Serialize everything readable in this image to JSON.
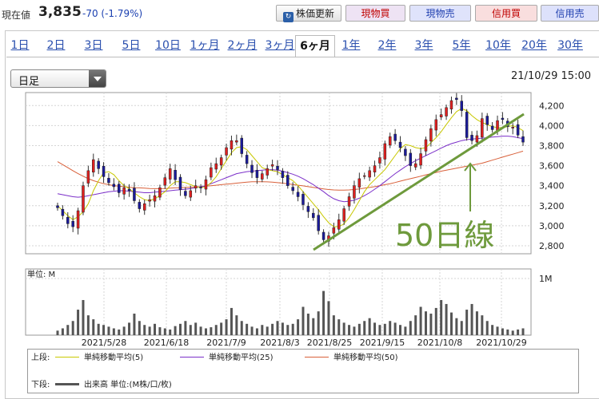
{
  "header": {
    "price_label": "現在値",
    "price_value": "3,835",
    "price_change": "-70 (-1.79%)",
    "buttons": {
      "update": "株価更新",
      "buy": "現物買",
      "sell": "現物売",
      "margin_buy": "信用買",
      "margin_sell": "信用売"
    }
  },
  "tabs": [
    "1日",
    "2日",
    "3日",
    "5日",
    "10日",
    "1ヶ月",
    "2ヶ月",
    "3ヶ月",
    "6ヶ月",
    "1年",
    "2年",
    "3年",
    "5年",
    "10年",
    "20年",
    "30年"
  ],
  "active_tab": "6ヶ月",
  "period_select": "日足",
  "datetime": "21/10/29 15:00",
  "chart": {
    "price_ticks": [
      "4,200",
      "4,000",
      "3,800",
      "3,600",
      "3,400",
      "3,200",
      "3,000",
      "2,800"
    ],
    "date_labels": [
      "2021/5/28",
      "2021/6/18",
      "2021/7/9",
      "2021/8/3",
      "2021/8/25",
      "2021/9/15",
      "2021/10/8",
      "2021/10/29"
    ],
    "volume_unit": "単位: M",
    "volume_tick": "1M",
    "annotation": "50日線",
    "colors": {
      "up": "#e02020",
      "down": "#1a1a9a",
      "ma5": "#c8c800",
      "ma25": "#7b2fc9",
      "ma50": "#d9603a",
      "annotation": "#6e9a3c",
      "volume": "#555555"
    }
  },
  "legend": {
    "upper_label": "上段:",
    "ma5": "単純移動平均(5)",
    "ma25": "単純移動平均(25)",
    "ma50": "単純移動平均(50)",
    "lower_label": "下段:",
    "volume": "出来高 単位:(M株/口/枚)"
  },
  "chart_data": {
    "type": "candlestick",
    "y_range": [
      2720,
      4330
    ],
    "close": [
      3180,
      3100,
      3020,
      2990,
      3150,
      3400,
      3550,
      3660,
      3570,
      3490,
      3430,
      3390,
      3330,
      3380,
      3350,
      3250,
      3170,
      3220,
      3260,
      3300,
      3380,
      3480,
      3570,
      3460,
      3360,
      3300,
      3350,
      3400,
      3380,
      3460,
      3580,
      3620,
      3680,
      3780,
      3850,
      3850,
      3720,
      3620,
      3530,
      3480,
      3520,
      3570,
      3610,
      3560,
      3480,
      3400,
      3350,
      3290,
      3210,
      3140,
      3080,
      2950,
      2860,
      2900,
      2980,
      3060,
      3170,
      3290,
      3400,
      3470,
      3500,
      3550,
      3600,
      3680,
      3820,
      3890,
      3850,
      3780,
      3700,
      3600,
      3620,
      3720,
      3860,
      3970,
      4060,
      4110,
      4180,
      4250,
      4260,
      4150,
      3880,
      3850,
      3900,
      4070,
      4010,
      3960,
      4050,
      4060,
      3990,
      3985,
      3905,
      3835
    ],
    "ma5": [
      3200,
      3150,
      3100,
      3060,
      3090,
      3140,
      3220,
      3350,
      3450,
      3530,
      3540,
      3510,
      3450,
      3400,
      3370,
      3330,
      3290,
      3260,
      3250,
      3270,
      3300,
      3340,
      3400,
      3440,
      3440,
      3430,
      3410,
      3390,
      3380,
      3390,
      3430,
      3490,
      3570,
      3650,
      3730,
      3780,
      3790,
      3760,
      3700,
      3640,
      3580,
      3560,
      3550,
      3540,
      3510,
      3480,
      3450,
      3400,
      3340,
      3280,
      3220,
      3160,
      3090,
      3030,
      2990,
      2990,
      3020,
      3080,
      3160,
      3250,
      3340,
      3410,
      3460,
      3510,
      3560,
      3630,
      3700,
      3770,
      3810,
      3800,
      3780,
      3770,
      3780,
      3830,
      3880,
      3940,
      4010,
      4080,
      4140,
      4170,
      4150,
      4100,
      4060,
      4030,
      4010,
      3990,
      3980,
      3980,
      3990,
      4000,
      3980,
      3950
    ],
    "ma25": [
      3320,
      3310,
      3300,
      3290,
      3285,
      3290,
      3300,
      3310,
      3320,
      3330,
      3340,
      3345,
      3350,
      3350,
      3345,
      3340,
      3335,
      3330,
      3330,
      3335,
      3340,
      3345,
      3350,
      3355,
      3360,
      3365,
      3370,
      3380,
      3390,
      3400,
      3420,
      3440,
      3460,
      3480,
      3500,
      3520,
      3530,
      3540,
      3545,
      3550,
      3555,
      3560,
      3560,
      3555,
      3545,
      3530,
      3515,
      3495,
      3470,
      3440,
      3410,
      3375,
      3340,
      3300,
      3270,
      3250,
      3240,
      3245,
      3255,
      3275,
      3300,
      3330,
      3365,
      3400,
      3440,
      3480,
      3520,
      3555,
      3590,
      3620,
      3650,
      3675,
      3700,
      3725,
      3750,
      3775,
      3800,
      3820,
      3835,
      3850,
      3860,
      3865,
      3870,
      3875,
      3880,
      3885,
      3890,
      3895,
      3895,
      3890,
      3880,
      3870
    ],
    "ma50": [
      3640,
      3610,
      3580,
      3550,
      3520,
      3495,
      3470,
      3450,
      3435,
      3420,
      3410,
      3400,
      3395,
      3390,
      3385,
      3380,
      3378,
      3375,
      3372,
      3370,
      3370,
      3372,
      3375,
      3378,
      3380,
      3382,
      3385,
      3388,
      3390,
      3395,
      3400,
      3405,
      3410,
      3415,
      3420,
      3425,
      3430,
      3435,
      3440,
      3440,
      3440,
      3438,
      3435,
      3430,
      3425,
      3420,
      3412,
      3405,
      3398,
      3390,
      3382,
      3375,
      3368,
      3362,
      3358,
      3355,
      3355,
      3358,
      3362,
      3368,
      3375,
      3382,
      3390,
      3400,
      3410,
      3420,
      3432,
      3445,
      3458,
      3470,
      3482,
      3495,
      3508,
      3520,
      3532,
      3545,
      3555,
      3565,
      3575,
      3585,
      3595,
      3605,
      3615,
      3625,
      3640,
      3655,
      3670,
      3685,
      3700,
      3715,
      3730,
      3745
    ],
    "volume": [
      0.08,
      0.12,
      0.18,
      0.25,
      0.45,
      0.62,
      0.35,
      0.28,
      0.2,
      0.18,
      0.15,
      0.12,
      0.1,
      0.15,
      0.22,
      0.38,
      0.25,
      0.18,
      0.15,
      0.2,
      0.14,
      0.12,
      0.1,
      0.16,
      0.2,
      0.25,
      0.18,
      0.22,
      0.15,
      0.12,
      0.14,
      0.18,
      0.22,
      0.28,
      0.48,
      0.35,
      0.25,
      0.2,
      0.15,
      0.12,
      0.18,
      0.15,
      0.2,
      0.25,
      0.22,
      0.18,
      0.2,
      0.28,
      0.5,
      0.38,
      0.3,
      0.42,
      0.78,
      0.6,
      0.35,
      0.28,
      0.22,
      0.18,
      0.15,
      0.2,
      0.25,
      0.3,
      0.22,
      0.18,
      0.2,
      0.25,
      0.22,
      0.18,
      0.15,
      0.25,
      0.35,
      0.5,
      0.42,
      0.38,
      0.48,
      0.62,
      0.55,
      0.4,
      0.3,
      0.25,
      0.45,
      0.55,
      0.42,
      0.35,
      0.25,
      0.18,
      0.15,
      0.12,
      0.1,
      0.08,
      0.1,
      0.12
    ]
  }
}
